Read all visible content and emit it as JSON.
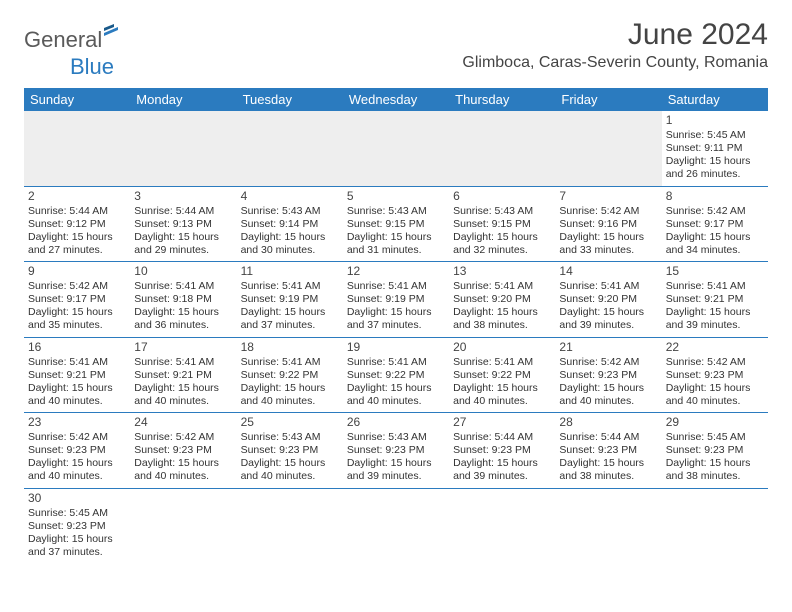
{
  "brand": {
    "part1": "General",
    "part2": "Blue"
  },
  "title": "June 2024",
  "location": "Glimboca, Caras-Severin County, Romania",
  "colors": {
    "header_bg": "#2b7bbf",
    "header_text": "#ffffff",
    "border": "#2b7bbf",
    "blank_bg": "#eeeeee",
    "text": "#333333",
    "title_text": "#444444",
    "logo_gray": "#5a5a5a",
    "logo_blue": "#2b7bbf"
  },
  "daynames": [
    "Sunday",
    "Monday",
    "Tuesday",
    "Wednesday",
    "Thursday",
    "Friday",
    "Saturday"
  ],
  "weeks": [
    [
      null,
      null,
      null,
      null,
      null,
      null,
      {
        "n": "1",
        "sr": "5:45 AM",
        "ss": "9:11 PM",
        "dl1": "15 hours",
        "dl2": "and 26 minutes."
      }
    ],
    [
      {
        "n": "2",
        "sr": "5:44 AM",
        "ss": "9:12 PM",
        "dl1": "15 hours",
        "dl2": "and 27 minutes."
      },
      {
        "n": "3",
        "sr": "5:44 AM",
        "ss": "9:13 PM",
        "dl1": "15 hours",
        "dl2": "and 29 minutes."
      },
      {
        "n": "4",
        "sr": "5:43 AM",
        "ss": "9:14 PM",
        "dl1": "15 hours",
        "dl2": "and 30 minutes."
      },
      {
        "n": "5",
        "sr": "5:43 AM",
        "ss": "9:15 PM",
        "dl1": "15 hours",
        "dl2": "and 31 minutes."
      },
      {
        "n": "6",
        "sr": "5:43 AM",
        "ss": "9:15 PM",
        "dl1": "15 hours",
        "dl2": "and 32 minutes."
      },
      {
        "n": "7",
        "sr": "5:42 AM",
        "ss": "9:16 PM",
        "dl1": "15 hours",
        "dl2": "and 33 minutes."
      },
      {
        "n": "8",
        "sr": "5:42 AM",
        "ss": "9:17 PM",
        "dl1": "15 hours",
        "dl2": "and 34 minutes."
      }
    ],
    [
      {
        "n": "9",
        "sr": "5:42 AM",
        "ss": "9:17 PM",
        "dl1": "15 hours",
        "dl2": "and 35 minutes."
      },
      {
        "n": "10",
        "sr": "5:41 AM",
        "ss": "9:18 PM",
        "dl1": "15 hours",
        "dl2": "and 36 minutes."
      },
      {
        "n": "11",
        "sr": "5:41 AM",
        "ss": "9:19 PM",
        "dl1": "15 hours",
        "dl2": "and 37 minutes."
      },
      {
        "n": "12",
        "sr": "5:41 AM",
        "ss": "9:19 PM",
        "dl1": "15 hours",
        "dl2": "and 37 minutes."
      },
      {
        "n": "13",
        "sr": "5:41 AM",
        "ss": "9:20 PM",
        "dl1": "15 hours",
        "dl2": "and 38 minutes."
      },
      {
        "n": "14",
        "sr": "5:41 AM",
        "ss": "9:20 PM",
        "dl1": "15 hours",
        "dl2": "and 39 minutes."
      },
      {
        "n": "15",
        "sr": "5:41 AM",
        "ss": "9:21 PM",
        "dl1": "15 hours",
        "dl2": "and 39 minutes."
      }
    ],
    [
      {
        "n": "16",
        "sr": "5:41 AM",
        "ss": "9:21 PM",
        "dl1": "15 hours",
        "dl2": "and 40 minutes."
      },
      {
        "n": "17",
        "sr": "5:41 AM",
        "ss": "9:21 PM",
        "dl1": "15 hours",
        "dl2": "and 40 minutes."
      },
      {
        "n": "18",
        "sr": "5:41 AM",
        "ss": "9:22 PM",
        "dl1": "15 hours",
        "dl2": "and 40 minutes."
      },
      {
        "n": "19",
        "sr": "5:41 AM",
        "ss": "9:22 PM",
        "dl1": "15 hours",
        "dl2": "and 40 minutes."
      },
      {
        "n": "20",
        "sr": "5:41 AM",
        "ss": "9:22 PM",
        "dl1": "15 hours",
        "dl2": "and 40 minutes."
      },
      {
        "n": "21",
        "sr": "5:42 AM",
        "ss": "9:23 PM",
        "dl1": "15 hours",
        "dl2": "and 40 minutes."
      },
      {
        "n": "22",
        "sr": "5:42 AM",
        "ss": "9:23 PM",
        "dl1": "15 hours",
        "dl2": "and 40 minutes."
      }
    ],
    [
      {
        "n": "23",
        "sr": "5:42 AM",
        "ss": "9:23 PM",
        "dl1": "15 hours",
        "dl2": "and 40 minutes."
      },
      {
        "n": "24",
        "sr": "5:42 AM",
        "ss": "9:23 PM",
        "dl1": "15 hours",
        "dl2": "and 40 minutes."
      },
      {
        "n": "25",
        "sr": "5:43 AM",
        "ss": "9:23 PM",
        "dl1": "15 hours",
        "dl2": "and 40 minutes."
      },
      {
        "n": "26",
        "sr": "5:43 AM",
        "ss": "9:23 PM",
        "dl1": "15 hours",
        "dl2": "and 39 minutes."
      },
      {
        "n": "27",
        "sr": "5:44 AM",
        "ss": "9:23 PM",
        "dl1": "15 hours",
        "dl2": "and 39 minutes."
      },
      {
        "n": "28",
        "sr": "5:44 AM",
        "ss": "9:23 PM",
        "dl1": "15 hours",
        "dl2": "and 38 minutes."
      },
      {
        "n": "29",
        "sr": "5:45 AM",
        "ss": "9:23 PM",
        "dl1": "15 hours",
        "dl2": "and 38 minutes."
      }
    ],
    [
      {
        "n": "30",
        "sr": "5:45 AM",
        "ss": "9:23 PM",
        "dl1": "15 hours",
        "dl2": "and 37 minutes."
      },
      null,
      null,
      null,
      null,
      null,
      null
    ]
  ],
  "labels": {
    "sunrise": "Sunrise:",
    "sunset": "Sunset:",
    "daylight": "Daylight:"
  }
}
